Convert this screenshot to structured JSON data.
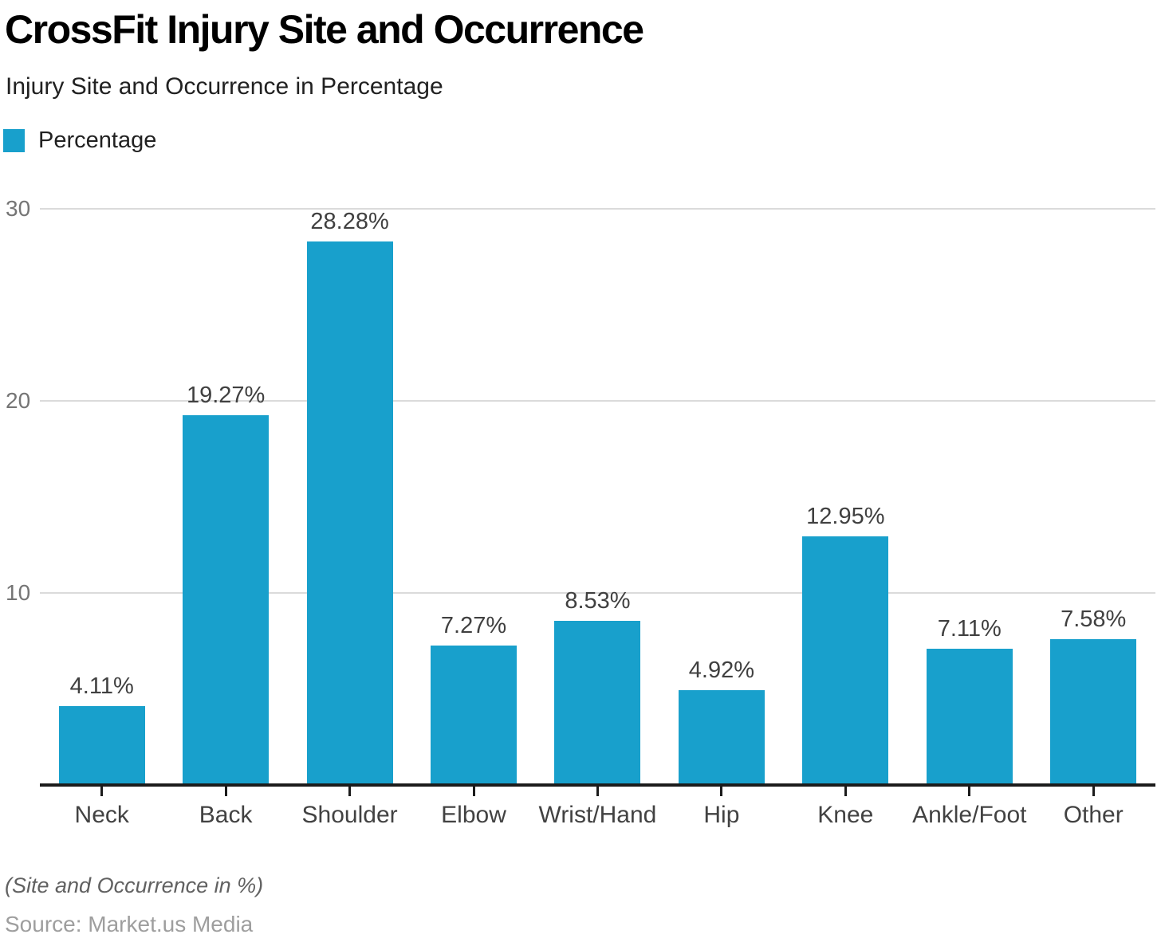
{
  "header": {
    "title": "CrossFit Injury Site and Occurrence",
    "subtitle": "Injury Site and Occurrence in Percentage"
  },
  "legend": {
    "items": [
      {
        "label": "Percentage",
        "color": "#18A0CC"
      }
    ]
  },
  "chart_data": {
    "type": "bar",
    "title": "CrossFit Injury Site and Occurrence",
    "subtitle": "Injury Site and Occurrence in Percentage",
    "categories": [
      "Neck",
      "Back",
      "Shoulder",
      "Elbow",
      "Wrist/Hand",
      "Hip",
      "Knee",
      "Ankle/Foot",
      "Other"
    ],
    "series": [
      {
        "name": "Percentage",
        "values": [
          4.11,
          19.27,
          28.28,
          7.27,
          8.53,
          4.92,
          12.95,
          7.11,
          7.58
        ]
      }
    ],
    "value_labels": [
      "4.11%",
      "19.27%",
      "28.28%",
      "7.27%",
      "8.53%",
      "4.92%",
      "12.95%",
      "7.11%",
      "7.58%"
    ],
    "xlabel": "",
    "ylabel": "",
    "ylim": [
      0,
      30
    ],
    "yticks": [
      10,
      20,
      30
    ],
    "grid": true,
    "legend_position": "top-left",
    "bar_color": "#18A0CC",
    "gridline_color": "#DBDBDB",
    "axis_color": "#1B1B1B"
  },
  "footer": {
    "note": "(Site and Occurrence in %)",
    "source": "Source: Market.us Media"
  }
}
